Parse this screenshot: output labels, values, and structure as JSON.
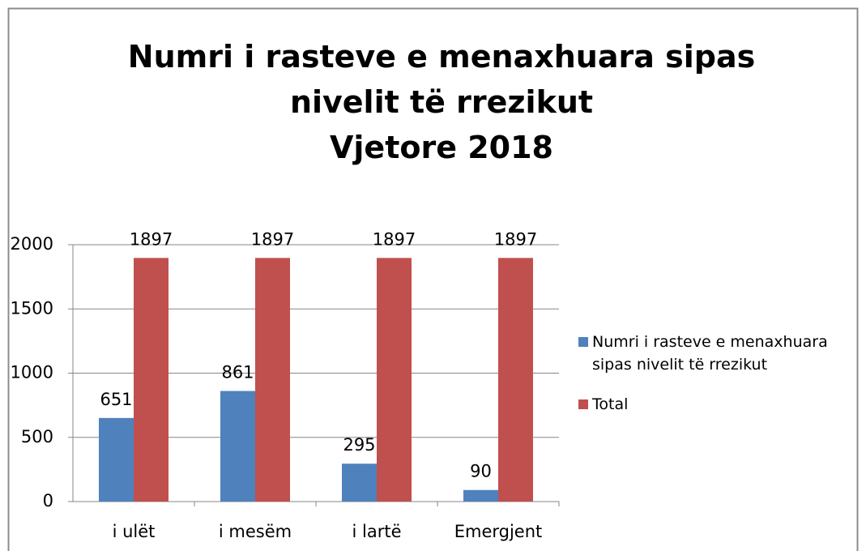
{
  "chart_data": {
    "type": "bar",
    "title": "Numri i rasteve e menaxhuara sipas nivelit të rrezikut",
    "subtitle": "Vjetore 2018",
    "categories": [
      "i ulët",
      "i mesëm",
      "i lartë",
      "Emergjent"
    ],
    "series": [
      {
        "name": "Numri i rasteve e menaxhuara sipas nivelit të rrezikut",
        "color": "#4f81bd",
        "values": [
          651,
          861,
          295,
          90
        ]
      },
      {
        "name": "Total",
        "color": "#c0504d",
        "values": [
          1897,
          1897,
          1897,
          1897
        ]
      }
    ],
    "ylim": [
      0,
      2000
    ],
    "yticks": [
      0,
      500,
      1000,
      1500,
      2000
    ],
    "grid": true,
    "legend": "right"
  }
}
